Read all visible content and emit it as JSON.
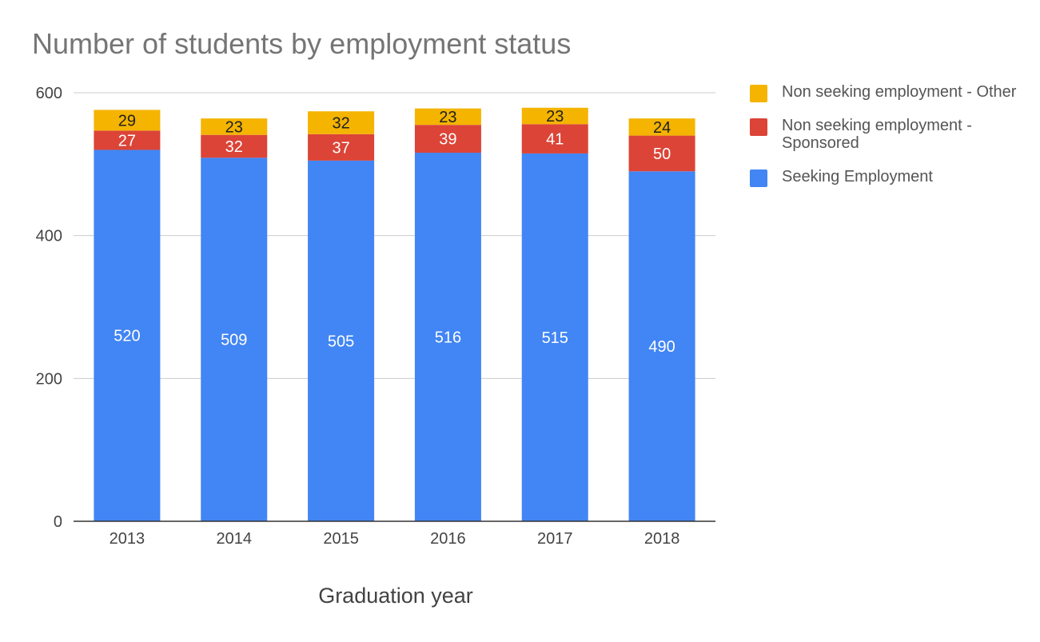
{
  "chart_data": {
    "type": "bar",
    "stacked": true,
    "title": "Number of students by employment status",
    "xlabel": "Graduation year",
    "ylabel": "",
    "ylim": [
      0,
      600
    ],
    "yticks": [
      0,
      200,
      400,
      600
    ],
    "grid": true,
    "legend_position": "right",
    "categories": [
      "2013",
      "2014",
      "2015",
      "2016",
      "2017",
      "2018"
    ],
    "series": [
      {
        "name": "Seeking Employment",
        "color": "#4285F4",
        "label_color": "#ffffff",
        "values": [
          520,
          509,
          505,
          516,
          515,
          490
        ]
      },
      {
        "name": "Non seeking employment - Sponsored",
        "color": "#DB4437",
        "label_color": "#ffffff",
        "values": [
          27,
          32,
          37,
          39,
          41,
          50
        ]
      },
      {
        "name": "Non seeking employment - Other",
        "color": "#F4B400",
        "label_color": "#212121",
        "values": [
          29,
          23,
          32,
          23,
          23,
          24
        ]
      }
    ]
  }
}
